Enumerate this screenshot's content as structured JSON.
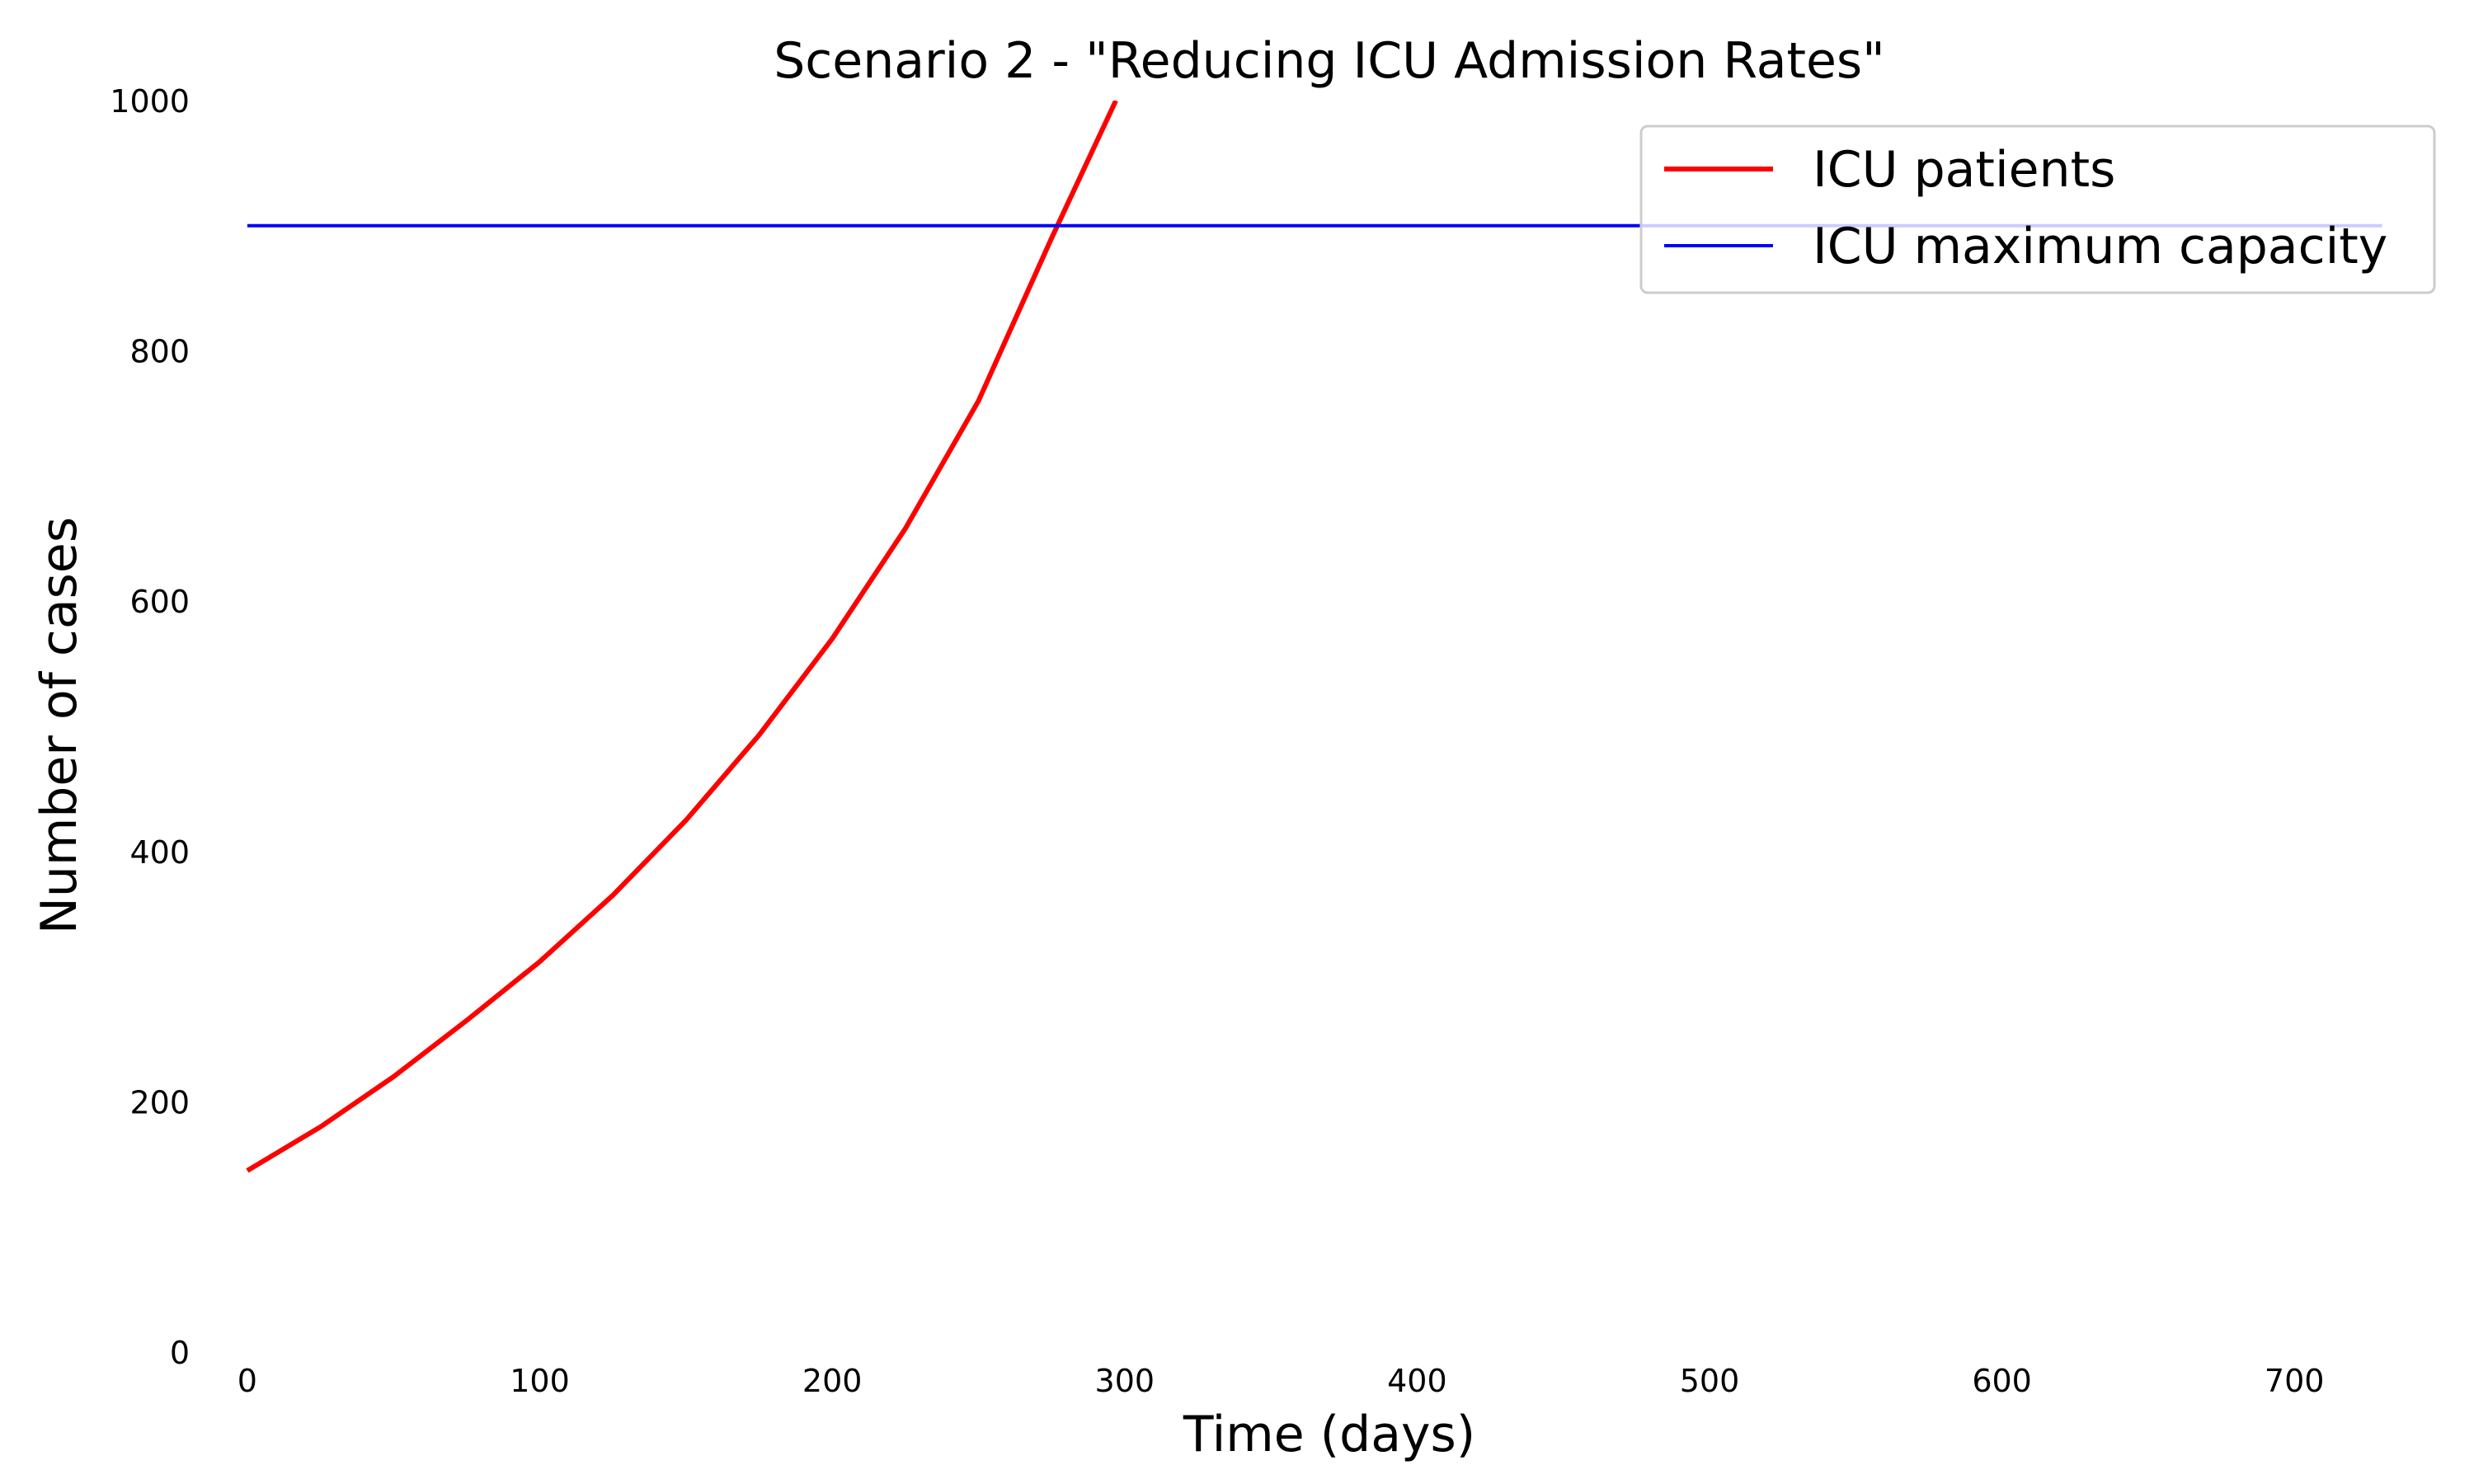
{
  "chart_data": {
    "type": "line",
    "title": "Scenario 2 - \"Reducing ICU Admission Rates\"",
    "xlabel": "Time (days)",
    "ylabel": "Number of cases",
    "xlim": [
      -20,
      760
    ],
    "ylim": [
      0,
      1000
    ],
    "xticks": [
      0,
      100,
      200,
      300,
      400,
      500,
      600,
      700
    ],
    "yticks": [
      0,
      200,
      400,
      600,
      800,
      1000
    ],
    "grid": false,
    "legend_position": "top-right",
    "series": [
      {
        "name": "ICU patients",
        "color": "#ff0000",
        "x": [
          0,
          25,
          50,
          75,
          100,
          125,
          150,
          175,
          200,
          225,
          250,
          275,
          297
        ],
        "y": [
          145,
          180,
          220,
          265,
          312,
          365,
          425,
          493,
          570,
          658,
          760,
          890,
          1000
        ]
      },
      {
        "name": "ICU maximum capacity",
        "color": "#0000ff",
        "x": [
          0,
          730
        ],
        "y": [
          900,
          900
        ]
      }
    ]
  }
}
